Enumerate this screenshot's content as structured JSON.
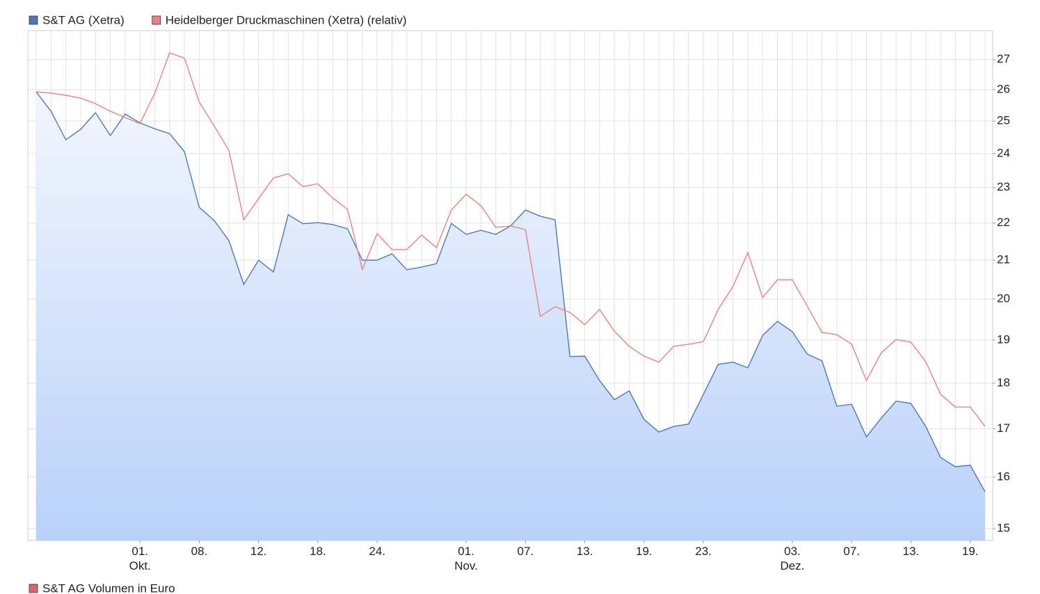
{
  "chart_data": {
    "type": "line",
    "log_scale": true,
    "grid": true,
    "y_axis_side": "right",
    "categories": [
      null,
      null,
      null,
      null,
      null,
      null,
      null,
      "01.\nOkt.",
      null,
      null,
      null,
      "08.",
      null,
      null,
      null,
      "12.",
      null,
      null,
      null,
      "18.",
      null,
      null,
      null,
      "24.",
      null,
      null,
      null,
      null,
      null,
      "01.\nNov.",
      null,
      null,
      null,
      "07.",
      null,
      null,
      null,
      "13.",
      null,
      null,
      null,
      "19.",
      null,
      null,
      null,
      "23.",
      null,
      null,
      null,
      null,
      null,
      "03.\nDez.",
      null,
      null,
      null,
      "07.",
      null,
      null,
      null,
      "13.",
      null,
      null,
      null,
      "19.",
      null
    ],
    "series": [
      {
        "name": "S&T AG (Xetra)",
        "color": "#4a78c0",
        "area": true,
        "values": [
          25.93,
          25.31,
          24.42,
          24.74,
          25.26,
          24.55,
          25.22,
          24.94,
          24.76,
          24.61,
          24.06,
          22.44,
          22.07,
          21.52,
          20.37,
          21.0,
          20.69,
          22.23,
          21.98,
          22.01,
          21.96,
          21.84,
          21.0,
          21.0,
          21.17,
          20.75,
          20.82,
          20.91,
          21.99,
          21.69,
          21.8,
          21.69,
          21.92,
          22.36,
          22.19,
          22.09,
          18.61,
          18.62,
          18.06,
          17.63,
          17.83,
          17.2,
          16.93,
          17.05,
          17.1,
          17.75,
          18.43,
          18.48,
          18.35,
          19.11,
          19.45,
          19.2,
          18.67,
          18.51,
          17.49,
          17.53,
          16.83,
          17.23,
          17.6,
          17.55,
          17.05,
          16.4,
          16.21,
          16.24,
          15.71
        ]
      },
      {
        "name": "Heidelberger Druckmaschinen (Xetra) (relativ)",
        "color": "#ee8080",
        "area": false,
        "values": [
          25.93,
          25.89,
          25.82,
          25.73,
          25.55,
          25.31,
          25.11,
          24.92,
          25.89,
          27.23,
          27.05,
          25.6,
          24.85,
          24.1,
          22.09,
          22.68,
          23.28,
          23.4,
          23.03,
          23.11,
          22.7,
          22.38,
          20.76,
          21.71,
          21.28,
          21.28,
          21.67,
          21.33,
          22.36,
          22.81,
          22.48,
          21.88,
          21.92,
          21.82,
          19.57,
          19.81,
          19.67,
          19.37,
          19.74,
          19.21,
          18.85,
          18.62,
          18.48,
          18.85,
          18.9,
          18.96,
          19.74,
          20.32,
          21.2,
          20.04,
          20.49,
          20.49,
          19.83,
          19.18,
          19.13,
          18.9,
          18.06,
          18.7,
          19.01,
          18.95,
          18.49,
          17.75,
          17.47,
          17.47,
          17.05
        ]
      }
    ],
    "ylim": [
      14.78,
      28.0
    ],
    "yticks": [
      15,
      16,
      17,
      18,
      19,
      20,
      21,
      22,
      23,
      24,
      25,
      26,
      27
    ],
    "volume_legend": {
      "name": "S&T AG Volumen in Euro",
      "color": "#e06666"
    }
  }
}
